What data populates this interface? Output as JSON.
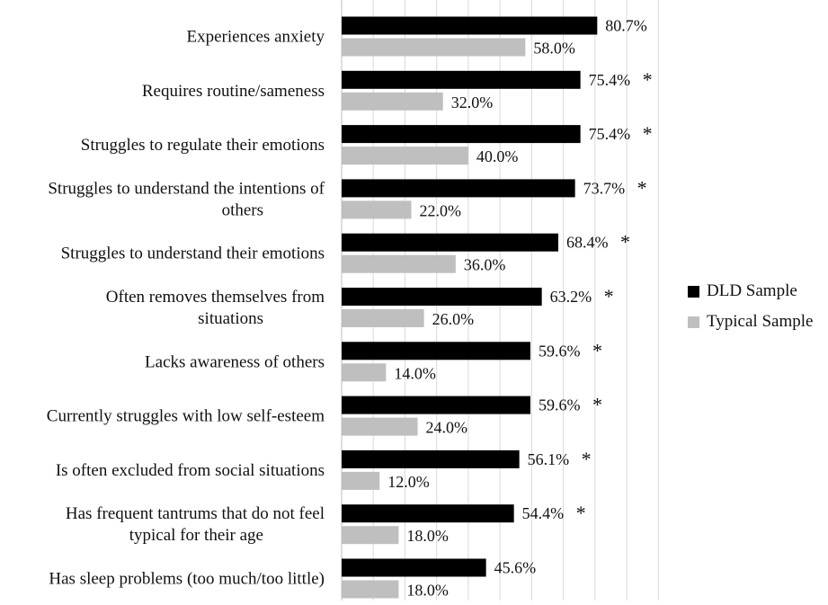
{
  "chart_data": {
    "type": "bar",
    "orientation": "horizontal",
    "title": "",
    "xlabel": "",
    "ylabel": "",
    "xlim": [
      0,
      100
    ],
    "grid": true,
    "legend_position": "right",
    "categories": [
      [
        "Experiences anxiety"
      ],
      [
        "Requires routine/sameness"
      ],
      [
        "Struggles to regulate their emotions"
      ],
      [
        "Struggles to understand the intentions of",
        "others"
      ],
      [
        "Struggles to understand their emotions"
      ],
      [
        "Often removes themselves from",
        "situations"
      ],
      [
        "Lacks awareness of others"
      ],
      [
        "Currently struggles with low self-esteem"
      ],
      [
        "Is often excluded from social situations"
      ],
      [
        "Has frequent tantrums that do not feel",
        "typical for their age"
      ],
      [
        "Has sleep problems (too much/too little)"
      ]
    ],
    "series": [
      {
        "name": "DLD Sample",
        "color": "#000000",
        "values": [
          80.7,
          75.4,
          75.4,
          73.7,
          68.4,
          63.2,
          59.6,
          59.6,
          56.1,
          54.4,
          45.6
        ],
        "labels": [
          "80.7%",
          "75.4%",
          "75.4%",
          "73.7%",
          "68.4%",
          "63.2%",
          "59.6%",
          "59.6%",
          "56.1%",
          "54.4%",
          "45.6%"
        ]
      },
      {
        "name": "Typical Sample",
        "color": "#bfbfbf",
        "values": [
          58.0,
          32.0,
          40.0,
          22.0,
          36.0,
          26.0,
          14.0,
          24.0,
          12.0,
          18.0,
          18.0
        ],
        "labels": [
          "58.0%",
          "32.0%",
          "40.0%",
          "22.0%",
          "36.0%",
          "26.0%",
          "14.0%",
          "24.0%",
          "12.0%",
          "18.0%",
          "18.0%"
        ]
      }
    ],
    "significant": [
      false,
      true,
      true,
      true,
      true,
      true,
      true,
      true,
      true,
      true,
      false
    ],
    "significance_marker": "*"
  }
}
